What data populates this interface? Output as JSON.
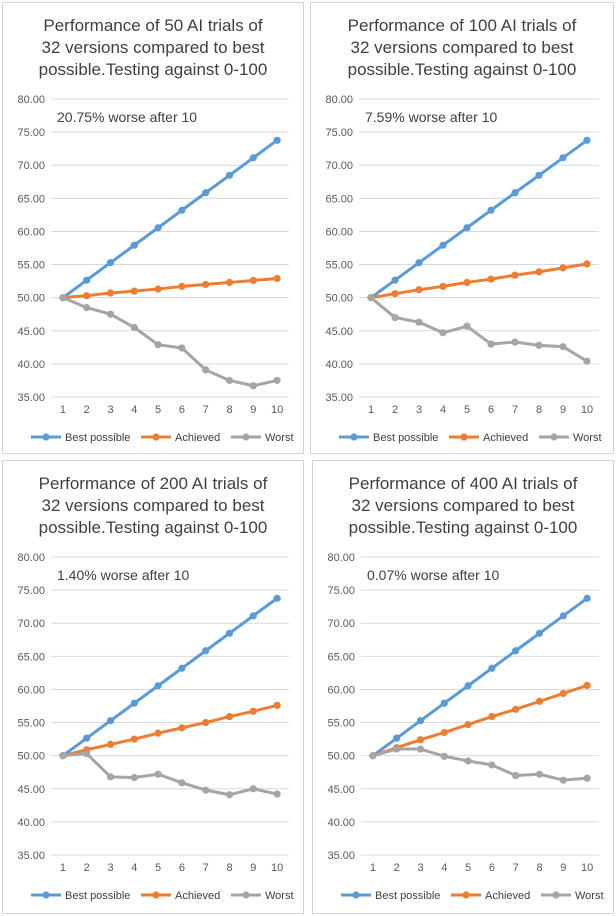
{
  "chart_data": [
    {
      "type": "line",
      "title_lines": [
        "Performance of 50 AI trials of",
        "32 versions compared to best",
        "possible.Testing against 0-100"
      ],
      "annotation": "20.75% worse after 10",
      "categories": [
        "1",
        "2",
        "3",
        "4",
        "5",
        "6",
        "7",
        "8",
        "9",
        "10"
      ],
      "ylim": [
        35,
        80
      ],
      "yticks": [
        "35.00",
        "40.00",
        "45.00",
        "50.00",
        "55.00",
        "60.00",
        "65.00",
        "70.00",
        "75.00",
        "80.00"
      ],
      "grid": true,
      "legend_position": "bottom",
      "series": [
        {
          "name": "Best possible",
          "color": "#5b9bd5",
          "values": [
            50,
            52.64,
            55.28,
            57.92,
            60.56,
            63.2,
            65.84,
            68.48,
            71.12,
            73.76
          ]
        },
        {
          "name": "Achieved",
          "color": "#ed7d31",
          "values": [
            50,
            50.3,
            50.7,
            51.0,
            51.3,
            51.7,
            52.0,
            52.3,
            52.6,
            52.9
          ]
        },
        {
          "name": "Worst",
          "color": "#a5a5a5",
          "values": [
            50,
            48.5,
            47.5,
            45.5,
            42.9,
            42.4,
            39.1,
            37.5,
            36.7,
            37.5
          ]
        }
      ]
    },
    {
      "type": "line",
      "title_lines": [
        "Performance of 100 AI trials of",
        "32 versions compared to best",
        "possible.Testing against 0-100"
      ],
      "annotation": "7.59% worse after 10",
      "categories": [
        "1",
        "2",
        "3",
        "4",
        "5",
        "6",
        "7",
        "8",
        "9",
        "10"
      ],
      "ylim": [
        35,
        80
      ],
      "yticks": [
        "35.00",
        "40.00",
        "45.00",
        "50.00",
        "55.00",
        "60.00",
        "65.00",
        "70.00",
        "75.00",
        "80.00"
      ],
      "grid": true,
      "legend_position": "bottom",
      "series": [
        {
          "name": "Best possible",
          "color": "#5b9bd5",
          "values": [
            50,
            52.64,
            55.28,
            57.92,
            60.56,
            63.2,
            65.84,
            68.48,
            71.12,
            73.76
          ]
        },
        {
          "name": "Achieved",
          "color": "#ed7d31",
          "values": [
            50,
            50.6,
            51.2,
            51.7,
            52.3,
            52.8,
            53.4,
            53.9,
            54.5,
            55.1
          ]
        },
        {
          "name": "Worst",
          "color": "#a5a5a5",
          "values": [
            50,
            47.0,
            46.3,
            44.7,
            45.7,
            43.0,
            43.3,
            42.8,
            42.6,
            40.4
          ]
        }
      ]
    },
    {
      "type": "line",
      "title_lines": [
        "Performance of 200 AI trials of",
        "32 versions compared to best",
        "possible.Testing against 0-100"
      ],
      "annotation": "1.40% worse after 10",
      "categories": [
        "1",
        "2",
        "3",
        "4",
        "5",
        "6",
        "7",
        "8",
        "9",
        "10"
      ],
      "ylim": [
        35,
        80
      ],
      "yticks": [
        "35.00",
        "40.00",
        "45.00",
        "50.00",
        "55.00",
        "60.00",
        "65.00",
        "70.00",
        "75.00",
        "80.00"
      ],
      "grid": true,
      "legend_position": "bottom",
      "series": [
        {
          "name": "Best possible",
          "color": "#5b9bd5",
          "values": [
            50,
            52.64,
            55.28,
            57.92,
            60.56,
            63.2,
            65.84,
            68.48,
            71.12,
            73.76
          ]
        },
        {
          "name": "Achieved",
          "color": "#ed7d31",
          "values": [
            50,
            50.9,
            51.7,
            52.5,
            53.4,
            54.2,
            55.0,
            55.9,
            56.7,
            57.6
          ]
        },
        {
          "name": "Worst",
          "color": "#a5a5a5",
          "values": [
            50,
            50.3,
            46.8,
            46.7,
            47.2,
            45.9,
            44.8,
            44.1,
            45.0,
            44.2
          ]
        }
      ]
    },
    {
      "type": "line",
      "title_lines": [
        "Performance of 400 AI trials of",
        "32 versions compared to best",
        "possible.Testing against 0-100"
      ],
      "annotation": "0.07% worse after 10",
      "categories": [
        "1",
        "2",
        "3",
        "4",
        "5",
        "6",
        "7",
        "8",
        "9",
        "10"
      ],
      "ylim": [
        35,
        80
      ],
      "yticks": [
        "35.00",
        "40.00",
        "45.00",
        "50.00",
        "55.00",
        "60.00",
        "65.00",
        "70.00",
        "75.00",
        "80.00"
      ],
      "grid": true,
      "legend_position": "bottom",
      "series": [
        {
          "name": "Best possible",
          "color": "#5b9bd5",
          "values": [
            50,
            52.64,
            55.28,
            57.92,
            60.56,
            63.2,
            65.84,
            68.48,
            71.12,
            73.76
          ]
        },
        {
          "name": "Achieved",
          "color": "#ed7d31",
          "values": [
            50,
            51.2,
            52.4,
            53.5,
            54.7,
            55.9,
            57.0,
            58.2,
            59.4,
            60.6
          ]
        },
        {
          "name": "Worst",
          "color": "#a5a5a5",
          "values": [
            50,
            51.0,
            51.0,
            49.9,
            49.2,
            48.6,
            47.0,
            47.2,
            46.3,
            46.6
          ]
        }
      ]
    }
  ]
}
